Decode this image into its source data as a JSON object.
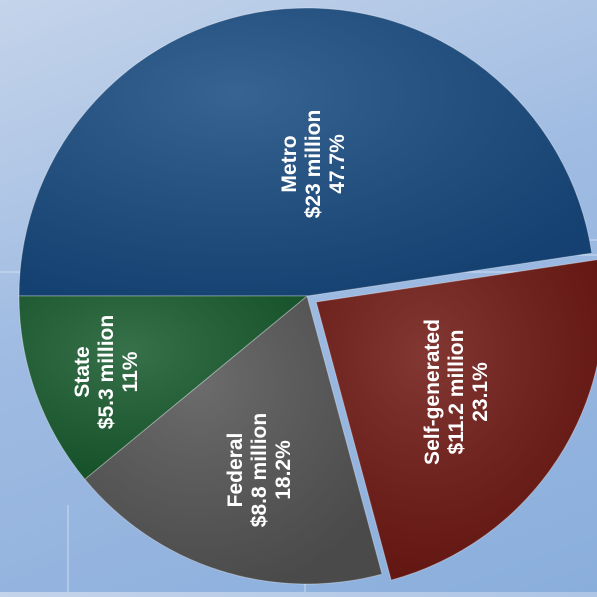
{
  "chart_data": {
    "type": "pie",
    "unit": "$ million",
    "slices": [
      {
        "category": "Metro",
        "value": 23,
        "amount_label": "$23 million",
        "percent_label": "47.7%",
        "color": "#174a80"
      },
      {
        "category": "Self-generated",
        "value": 11.2,
        "amount_label": "$11.2 million",
        "percent_label": "23.1%",
        "color": "#6e1712"
      },
      {
        "category": "Federal",
        "value": 8.8,
        "amount_label": "$8.8 million",
        "percent_label": "18.2%",
        "color": "#545455"
      },
      {
        "category": "State",
        "value": 5.3,
        "amount_label": "$5.3 million",
        "percent_label": "11%",
        "color": "#165a2d"
      }
    ],
    "label_text_rotation": "rotated 90° counter-clockwise",
    "exploded_slice": "Self-generated",
    "legend": "none"
  },
  "colors": {
    "background_top": "#c4d4ea",
    "background_bottom": "#8aaedc",
    "label_text": "#ffffff",
    "leader_lines": "#dfe9f6"
  }
}
